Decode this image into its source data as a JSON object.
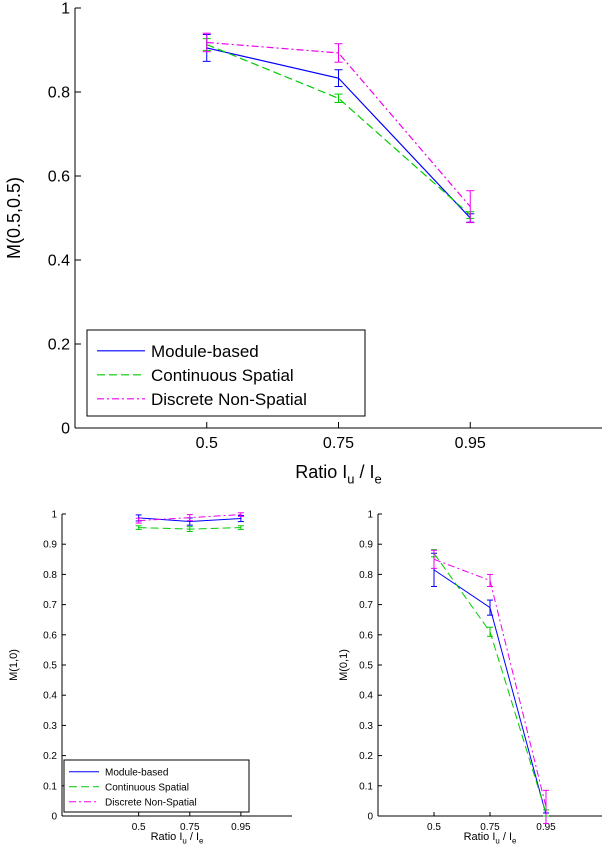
{
  "chart_data": [
    {
      "type": "line",
      "x": [
        "0.5",
        "0.75",
        "0.95"
      ],
      "xlabel": "Ratio I_u / I_e",
      "ylabel": "M(0.5,0.5)",
      "ylim": [
        0,
        1
      ],
      "yticks": [
        "0",
        "0.2",
        "0.4",
        "0.6",
        "0.8",
        "1"
      ],
      "grid": false,
      "legend_position": "bottom-left",
      "series": [
        {
          "name": "Module-based",
          "color": "#0000ff",
          "dash": "solid",
          "values": [
            0.905,
            0.833,
            0.5
          ],
          "errors": [
            0.032,
            0.02,
            0.01
          ]
        },
        {
          "name": "Continuous Spatial",
          "color": "#00cc00",
          "dash": "dashed",
          "values": [
            0.913,
            0.785,
            0.507
          ],
          "errors": [
            0.014,
            0.01,
            0.008
          ]
        },
        {
          "name": "Discrete Non-Spatial",
          "color": "#ee00ee",
          "dash": "dashdot",
          "values": [
            0.918,
            0.893,
            0.527
          ],
          "errors": [
            0.022,
            0.022,
            0.038
          ]
        }
      ]
    },
    {
      "type": "line",
      "x": [
        "0.5",
        "0.75",
        "0.95"
      ],
      "xlabel": "Ratio I_u / I_e",
      "ylabel": "M(1,0)",
      "ylim": [
        0,
        1
      ],
      "yticks": [
        "0",
        "0.1",
        "0.2",
        "0.3",
        "0.4",
        "0.5",
        "0.6",
        "0.7",
        "0.8",
        "0.9",
        "1"
      ],
      "grid": false,
      "legend_position": "bottom-left",
      "series": [
        {
          "name": "Module-based",
          "color": "#0000ff",
          "dash": "solid",
          "values": [
            0.987,
            0.975,
            0.985
          ],
          "errors": [
            0.01,
            0.012,
            0.01
          ]
        },
        {
          "name": "Continuous Spatial",
          "color": "#00cc00",
          "dash": "dashed",
          "values": [
            0.955,
            0.95,
            0.955
          ],
          "errors": [
            0.006,
            0.008,
            0.006
          ]
        },
        {
          "name": "Discrete Non-Spatial",
          "color": "#ee00ee",
          "dash": "dashdot",
          "values": [
            0.978,
            0.988,
            0.998
          ],
          "errors": [
            0.008,
            0.01,
            0.006
          ]
        }
      ]
    },
    {
      "type": "line",
      "x": [
        "0.5",
        "0.75",
        "0.95"
      ],
      "xlabel": "Ratio I_u / I_e",
      "ylabel": "M(0,1)",
      "ylim": [
        0,
        1
      ],
      "yticks": [
        "0",
        "0.1",
        "0.2",
        "0.3",
        "0.4",
        "0.5",
        "0.6",
        "0.7",
        "0.8",
        "0.9",
        "1"
      ],
      "grid": false,
      "series": [
        {
          "name": "Module-based",
          "color": "#0000ff",
          "dash": "solid",
          "values": [
            0.815,
            0.69,
            0.005
          ],
          "errors": [
            0.055,
            0.025,
            0.005
          ]
        },
        {
          "name": "Continuous Spatial",
          "color": "#00cc00",
          "dash": "dashed",
          "values": [
            0.87,
            0.61,
            0.01
          ],
          "errors": [
            0.012,
            0.015,
            0.01
          ]
        },
        {
          "name": "Discrete Non-Spatial",
          "color": "#ee00ee",
          "dash": "dashdot",
          "values": [
            0.85,
            0.78,
            0.03
          ],
          "errors": [
            0.03,
            0.02,
            0.055
          ]
        }
      ]
    }
  ]
}
